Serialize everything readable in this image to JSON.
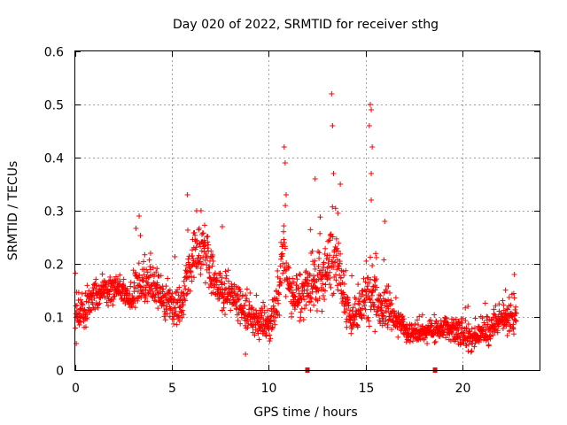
{
  "chart_data": {
    "type": "scatter",
    "title": "Day 020 of 2022, SRMTID for receiver sthg",
    "xlabel": "GPS time / hours",
    "ylabel": "SRMTID / TECUs",
    "xlim": [
      0,
      24
    ],
    "ylim": [
      0,
      0.6
    ],
    "x_ticks": [
      0,
      5,
      10,
      15,
      20
    ],
    "x_tick_labels": [
      "0",
      "5",
      "10",
      "15",
      "20"
    ],
    "y_ticks": [
      0,
      0.1,
      0.2,
      0.3,
      0.4,
      0.5,
      0.6
    ],
    "y_tick_labels": [
      "0",
      "0.1",
      "0.2",
      "0.3",
      "0.4",
      "0.5",
      "0.6"
    ],
    "grid": true,
    "marker": "plus",
    "color": "#ff0000",
    "series": [
      {
        "name": "SRMTID",
        "profile": {
          "x": [
            0,
            0.5,
            1,
            1.5,
            2,
            2.5,
            3,
            3.3,
            3.6,
            4,
            4.5,
            5,
            5.5,
            5.8,
            6.2,
            6.6,
            7,
            7.5,
            8,
            8.5,
            9,
            9.5,
            10,
            10.4,
            10.8,
            11.2,
            11.6,
            12,
            12.5,
            13,
            13.3,
            13.6,
            14,
            14.4,
            14.8,
            15.2,
            15.6,
            16,
            16.5,
            17,
            17.5,
            18,
            18.5,
            19,
            19.5,
            20,
            20.3,
            20.6,
            21,
            21.5,
            22,
            22.5,
            22.8
          ],
          "mean": [
            0.11,
            0.12,
            0.14,
            0.15,
            0.15,
            0.15,
            0.13,
            0.16,
            0.17,
            0.16,
            0.14,
            0.12,
            0.12,
            0.18,
            0.22,
            0.23,
            0.19,
            0.15,
            0.14,
            0.12,
            0.1,
            0.09,
            0.09,
            0.12,
            0.22,
            0.14,
            0.13,
            0.15,
            0.17,
            0.18,
            0.22,
            0.2,
            0.11,
            0.1,
            0.12,
            0.14,
            0.13,
            0.12,
            0.1,
            0.08,
            0.07,
            0.07,
            0.07,
            0.08,
            0.08,
            0.07,
            0.06,
            0.06,
            0.07,
            0.08,
            0.1,
            0.1,
            0.1
          ],
          "spread": [
            0.05,
            0.05,
            0.05,
            0.04,
            0.04,
            0.04,
            0.05,
            0.07,
            0.06,
            0.05,
            0.05,
            0.05,
            0.05,
            0.07,
            0.07,
            0.06,
            0.06,
            0.06,
            0.05,
            0.05,
            0.04,
            0.04,
            0.05,
            0.06,
            0.09,
            0.06,
            0.07,
            0.07,
            0.07,
            0.08,
            0.1,
            0.08,
            0.05,
            0.05,
            0.07,
            0.1,
            0.07,
            0.06,
            0.04,
            0.03,
            0.03,
            0.03,
            0.03,
            0.03,
            0.03,
            0.04,
            0.04,
            0.03,
            0.03,
            0.04,
            0.04,
            0.04,
            0.04
          ]
        },
        "notable_points": [
          {
            "x": 3.3,
            "y": 0.29
          },
          {
            "x": 5.8,
            "y": 0.33
          },
          {
            "x": 6.5,
            "y": 0.3
          },
          {
            "x": 7.6,
            "y": 0.27
          },
          {
            "x": 8.8,
            "y": 0.03
          },
          {
            "x": 10.8,
            "y": 0.42
          },
          {
            "x": 10.85,
            "y": 0.39
          },
          {
            "x": 10.9,
            "y": 0.33
          },
          {
            "x": 12.4,
            "y": 0.36
          },
          {
            "x": 13.25,
            "y": 0.52
          },
          {
            "x": 13.3,
            "y": 0.46
          },
          {
            "x": 13.35,
            "y": 0.37
          },
          {
            "x": 13.7,
            "y": 0.35
          },
          {
            "x": 15.25,
            "y": 0.5
          },
          {
            "x": 15.3,
            "y": 0.49
          },
          {
            "x": 15.2,
            "y": 0.46
          },
          {
            "x": 15.35,
            "y": 0.42
          },
          {
            "x": 15.3,
            "y": 0.37
          },
          {
            "x": 15.3,
            "y": 0.32
          },
          {
            "x": 16.0,
            "y": 0.28
          },
          {
            "x": 22.7,
            "y": 0.18
          },
          {
            "x": 20.3,
            "y": 0.12
          },
          {
            "x": 0.05,
            "y": 0.05
          }
        ],
        "zero_values": [
          {
            "x": 12.0,
            "y": 0
          },
          {
            "x": 18.6,
            "y": 0
          }
        ]
      }
    ]
  }
}
